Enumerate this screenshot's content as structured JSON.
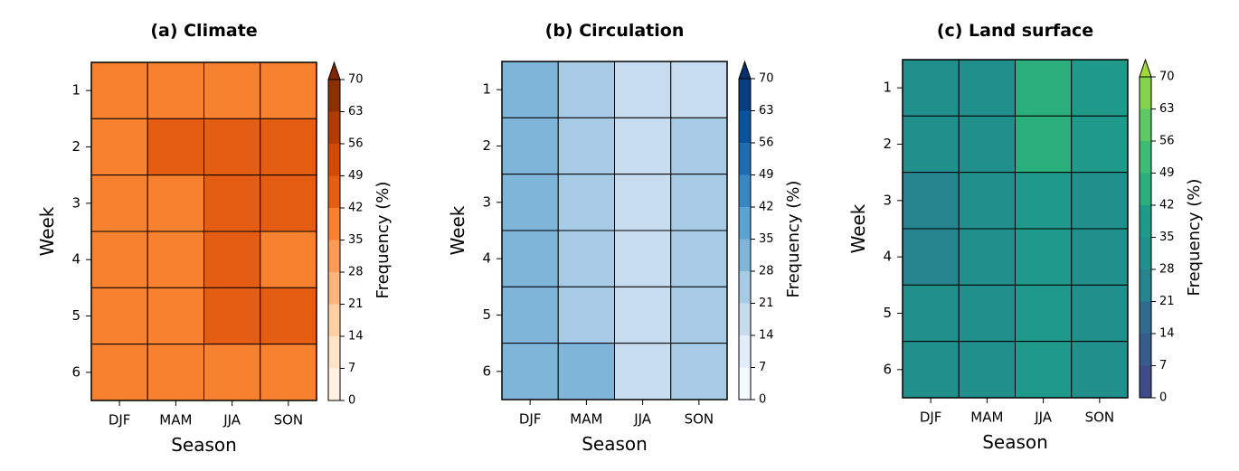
{
  "chart_data": [
    {
      "type": "heatmap",
      "title": "(a) Climate",
      "xlabel": "Season",
      "ylabel": "Week",
      "colorbar_label": "Frequency (%)",
      "categories": [
        "DJF",
        "MAM",
        "JJA",
        "SON"
      ],
      "ycategories": [
        "1",
        "2",
        "3",
        "4",
        "5",
        "6"
      ],
      "values": [
        [
          38,
          38,
          38,
          38
        ],
        [
          38,
          46,
          46,
          46
        ],
        [
          38,
          38,
          46,
          46
        ],
        [
          38,
          38,
          46,
          38
        ],
        [
          38,
          38,
          46,
          46
        ],
        [
          38,
          38,
          38,
          38
        ]
      ],
      "clim": [
        0,
        70
      ],
      "cticks": [
        0,
        7,
        14,
        21,
        28,
        35,
        42,
        49,
        56,
        63,
        70
      ],
      "colors": [
        "#fff1e3",
        "#fee3c8",
        "#fdcfa2",
        "#fdb47a",
        "#fd9a55",
        "#f7812f",
        "#e55c13",
        "#d24a05",
        "#b03c03",
        "#8c3004"
      ],
      "over_color": "#7f2704"
    },
    {
      "type": "heatmap",
      "title": "(b) Circulation",
      "xlabel": "Season",
      "ylabel": "Week",
      "colorbar_label": "Frequency (%)",
      "categories": [
        "DJF",
        "MAM",
        "JJA",
        "SON"
      ],
      "ycategories": [
        "1",
        "2",
        "3",
        "4",
        "5",
        "6"
      ],
      "values": [
        [
          31,
          25,
          18,
          18
        ],
        [
          31,
          25,
          18,
          25
        ],
        [
          31,
          25,
          18,
          25
        ],
        [
          31,
          25,
          18,
          25
        ],
        [
          31,
          25,
          18,
          25
        ],
        [
          31,
          31,
          18,
          25
        ]
      ],
      "clim": [
        0,
        70
      ],
      "cticks": [
        0,
        7,
        14,
        21,
        28,
        35,
        42,
        49,
        56,
        63,
        70
      ],
      "colors": [
        "#f4f9fe",
        "#e1edf8",
        "#c8dcef",
        "#a7cae5",
        "#7fb5d9",
        "#5aa2cf",
        "#3987c0",
        "#1f6cb1",
        "#0a539e",
        "#083d7f"
      ],
      "over_color": "#08306b"
    },
    {
      "type": "heatmap",
      "title": "(c) Land surface",
      "xlabel": "Season",
      "ylabel": "Week",
      "colorbar_label": "Frequency (%)",
      "categories": [
        "DJF",
        "MAM",
        "JJA",
        "SON"
      ],
      "ycategories": [
        "1",
        "2",
        "3",
        "4",
        "5",
        "6"
      ],
      "values": [
        [
          32,
          32,
          45,
          38
        ],
        [
          32,
          32,
          45,
          38
        ],
        [
          26,
          32,
          38,
          32
        ],
        [
          26,
          32,
          38,
          32
        ],
        [
          32,
          32,
          38,
          32
        ],
        [
          32,
          32,
          38,
          32
        ]
      ],
      "clim": [
        0,
        70
      ],
      "cticks": [
        0,
        7,
        14,
        21,
        28,
        35,
        42,
        49,
        56,
        63,
        70
      ],
      "colors": [
        "#3e4a89",
        "#375b8d",
        "#2f6b8e",
        "#25848e",
        "#21908d",
        "#1f9a8a",
        "#2aae7c",
        "#3fbc73",
        "#5ec962",
        "#84d44b"
      ],
      "over_color": "#a0da39"
    }
  ]
}
